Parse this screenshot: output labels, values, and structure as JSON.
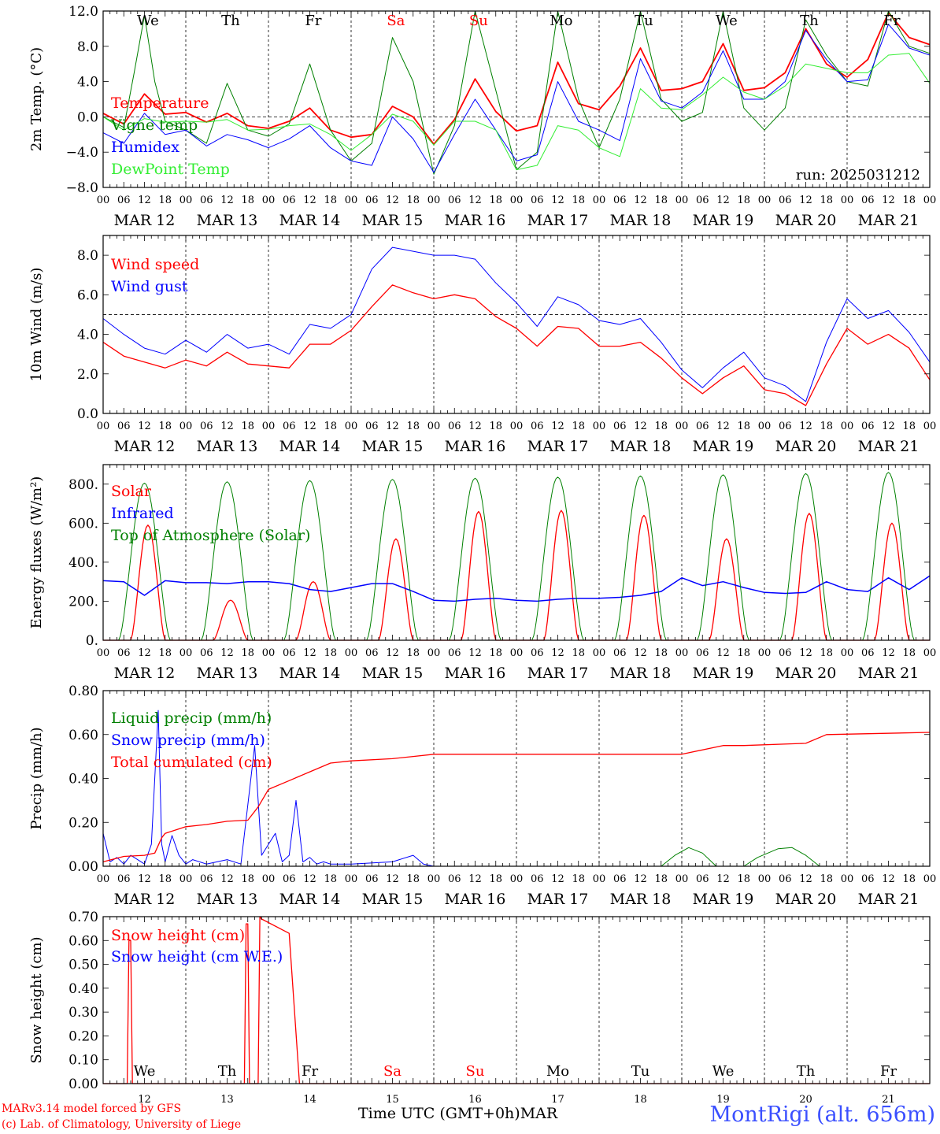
{
  "colors": {
    "red": "#ff0000",
    "blue": "#0000ff",
    "green": "#008000",
    "lightgreen": "#33ee33",
    "weekend": "#ff0000",
    "weekday": "#000000",
    "station": "#3a4fff"
  },
  "x_axis": {
    "hour_labels": [
      "00",
      "06",
      "12",
      "18"
    ],
    "final_hour_label": "00",
    "dates": [
      "MAR 12",
      "MAR 13",
      "MAR 14",
      "MAR 15",
      "MAR 16",
      "MAR 17",
      "MAR 18",
      "MAR 19",
      "MAR 20",
      "MAR 21"
    ],
    "day_numbers": [
      "12",
      "13",
      "14",
      "15",
      "16",
      "17",
      "18",
      "19",
      "20",
      "21"
    ],
    "weekdays": [
      "We",
      "Th",
      "Fr",
      "Sa",
      "Su",
      "Mo",
      "Tu",
      "We",
      "Th",
      "Fr"
    ],
    "weekend_flags": [
      false,
      false,
      false,
      true,
      true,
      false,
      false,
      false,
      false,
      false
    ]
  },
  "footer": {
    "model_line": "MARv3.14 model forced by GFS",
    "copyright_line": "(c) Lab. of Climatology, University of Liege",
    "xlabel": "Time UTC (GMT+0h)MAR",
    "station": "MontRigi (alt. 656m)"
  },
  "chart_data": [
    {
      "type": "line",
      "ylabel": "2m Temp. (°C)",
      "ylim": [
        -8,
        12
      ],
      "yticks": [
        -8,
        -4,
        0,
        4,
        8,
        12
      ],
      "ytick_labels": [
        "−8.0",
        "−4.0",
        "0.0",
        "4.0",
        "8.0",
        "12.0"
      ],
      "ref_line": 0,
      "run_label": "run: 2025031212",
      "x_unit": "hours since 2025-03-12 00 UTC",
      "series": [
        {
          "name": "Temperature",
          "color": "#ff0000",
          "width": 1.8,
          "x": [
            0,
            6,
            12,
            18,
            24,
            30,
            36,
            42,
            48,
            54,
            60,
            66,
            72,
            78,
            84,
            90,
            96,
            102,
            108,
            114,
            120,
            126,
            132,
            138,
            144,
            150,
            156,
            162,
            168,
            174,
            180,
            186,
            192,
            198,
            204,
            210,
            216,
            222,
            228,
            234,
            240
          ],
          "y": [
            0.4,
            -0.8,
            2.6,
            0.3,
            0.5,
            -0.6,
            0.4,
            -1.0,
            -1.3,
            -0.5,
            1.0,
            -1.5,
            -2.3,
            -2.0,
            1.2,
            0.0,
            -3.1,
            -0.3,
            4.3,
            0.6,
            -1.6,
            -1.0,
            6.2,
            1.5,
            0.8,
            3.5,
            7.8,
            3.0,
            3.2,
            4.0,
            8.3,
            3.0,
            3.3,
            5.0,
            10.0,
            6.0,
            4.5,
            6.5,
            11.8,
            9.0,
            8.2
          ]
        },
        {
          "name": "Vigne temp",
          "color": "#008000",
          "width": 1.0,
          "x": [
            0,
            6,
            9,
            12,
            15,
            18,
            24,
            30,
            36,
            42,
            48,
            54,
            60,
            66,
            72,
            78,
            84,
            90,
            96,
            102,
            108,
            114,
            120,
            126,
            132,
            138,
            144,
            150,
            156,
            162,
            168,
            174,
            180,
            186,
            192,
            198,
            204,
            210,
            216,
            222,
            228,
            234,
            240
          ],
          "y": [
            0.0,
            -1.2,
            5.0,
            11.5,
            4.0,
            -0.5,
            -1.5,
            -3.0,
            3.8,
            -1.5,
            -2.2,
            -0.8,
            6.0,
            -1.5,
            -5.0,
            -3.0,
            9.0,
            4.0,
            -6.5,
            -1.0,
            12.0,
            3.0,
            -6.0,
            -4.0,
            12.0,
            2.0,
            -3.5,
            2.0,
            12.0,
            2.0,
            -0.5,
            0.5,
            12.0,
            1.0,
            -1.5,
            1.0,
            11.0,
            7.0,
            4.0,
            3.5,
            12.0,
            8.0,
            7.2
          ]
        },
        {
          "name": "Humidex",
          "color": "#0000ff",
          "width": 1.0,
          "x": [
            0,
            6,
            12,
            18,
            24,
            30,
            36,
            42,
            48,
            54,
            60,
            66,
            72,
            78,
            84,
            90,
            96,
            102,
            108,
            114,
            120,
            126,
            132,
            138,
            144,
            150,
            156,
            162,
            168,
            174,
            180,
            186,
            192,
            198,
            204,
            210,
            216,
            222,
            228,
            234,
            240
          ],
          "y": [
            -1.8,
            -3.0,
            0.4,
            -2.0,
            -1.5,
            -3.3,
            -2.0,
            -2.6,
            -3.5,
            -2.5,
            -1.0,
            -3.5,
            -5.0,
            -5.5,
            0.0,
            -2.5,
            -6.3,
            -2.0,
            2.0,
            -1.5,
            -5.0,
            -4.3,
            4.0,
            -0.5,
            -1.5,
            -2.7,
            6.6,
            1.8,
            1.0,
            2.8,
            7.5,
            2.0,
            2.0,
            4.0,
            9.8,
            6.5,
            4.0,
            4.2,
            10.5,
            7.8,
            7.0
          ]
        },
        {
          "name": "DewPoint Temp",
          "color": "#33ee33",
          "width": 1.0,
          "x": [
            0,
            6,
            12,
            18,
            24,
            30,
            36,
            42,
            48,
            54,
            60,
            66,
            72,
            78,
            84,
            90,
            96,
            102,
            108,
            114,
            120,
            126,
            132,
            138,
            144,
            150,
            156,
            162,
            168,
            174,
            180,
            186,
            192,
            198,
            204,
            210,
            216,
            222,
            228,
            234,
            240
          ],
          "y": [
            0.0,
            -1.5,
            -0.2,
            -0.6,
            -0.5,
            -0.6,
            -0.3,
            -1.5,
            -1.4,
            -1.0,
            -0.8,
            -2.0,
            -3.8,
            -2.0,
            0.3,
            -0.5,
            -3.2,
            -0.5,
            -0.5,
            -1.5,
            -6.0,
            -5.5,
            -1.0,
            -1.5,
            -3.5,
            -4.5,
            3.2,
            1.0,
            0.8,
            2.5,
            4.5,
            2.8,
            2.0,
            3.5,
            6.0,
            5.5,
            5.0,
            5.0,
            7.0,
            7.2,
            3.8
          ]
        }
      ]
    },
    {
      "type": "line",
      "ylabel": "10m Wind (m/s)",
      "ylim": [
        0,
        9
      ],
      "yticks": [
        0,
        2,
        4,
        6,
        8
      ],
      "ytick_labels": [
        "0.0",
        "2.0",
        "4.0",
        "6.0",
        "8.0"
      ],
      "ref_line": 5,
      "x_unit": "hours since 2025-03-12 00 UTC",
      "series": [
        {
          "name": "Wind speed",
          "color": "#ff0000",
          "width": 1.3,
          "x": [
            0,
            6,
            12,
            18,
            24,
            30,
            36,
            42,
            48,
            54,
            60,
            66,
            72,
            78,
            84,
            90,
            96,
            102,
            108,
            114,
            120,
            126,
            132,
            138,
            144,
            150,
            156,
            162,
            168,
            174,
            180,
            186,
            192,
            198,
            204,
            210,
            216,
            222,
            228,
            234,
            240
          ],
          "y": [
            3.6,
            2.9,
            2.6,
            2.3,
            2.7,
            2.4,
            3.1,
            2.5,
            2.4,
            2.3,
            3.5,
            3.5,
            4.2,
            5.4,
            6.5,
            6.1,
            5.8,
            6.0,
            5.8,
            4.9,
            4.3,
            3.4,
            4.4,
            4.3,
            3.4,
            3.4,
            3.6,
            2.8,
            1.8,
            1.0,
            1.8,
            2.4,
            1.2,
            1.0,
            0.4,
            2.5,
            4.3,
            3.5,
            4.0,
            3.3,
            1.7
          ]
        },
        {
          "name": "Wind gust",
          "color": "#0000ff",
          "width": 1.0,
          "x": [
            0,
            6,
            12,
            18,
            24,
            30,
            36,
            42,
            48,
            54,
            60,
            66,
            72,
            78,
            84,
            90,
            96,
            102,
            108,
            114,
            120,
            126,
            132,
            138,
            144,
            150,
            156,
            162,
            168,
            174,
            180,
            186,
            192,
            198,
            204,
            210,
            216,
            222,
            228,
            234,
            240
          ],
          "y": [
            4.8,
            4.0,
            3.3,
            3.0,
            3.7,
            3.1,
            4.0,
            3.3,
            3.5,
            3.0,
            4.5,
            4.3,
            5.0,
            7.3,
            8.4,
            8.2,
            8.0,
            8.0,
            7.8,
            6.6,
            5.6,
            4.4,
            5.9,
            5.5,
            4.7,
            4.5,
            4.8,
            3.6,
            2.2,
            1.3,
            2.3,
            3.1,
            1.8,
            1.4,
            0.6,
            3.6,
            5.8,
            4.8,
            5.2,
            4.1,
            2.6
          ]
        }
      ]
    },
    {
      "type": "line",
      "ylabel": "Energy fluxes (W/m²)",
      "ylim": [
        0,
        900
      ],
      "yticks": [
        0,
        200,
        400,
        600,
        800
      ],
      "ytick_labels": [
        "0.",
        "200.",
        "400.",
        "600.",
        "800."
      ],
      "x_unit": "hours since 2025-03-12 00 UTC",
      "series": [
        {
          "name": "Solar",
          "color": "#ff0000",
          "width": 1.3,
          "daily_peak_hour": 13,
          "daily_peaks": [
            590,
            205,
            300,
            520,
            660,
            665,
            640,
            520,
            650,
            600
          ]
        },
        {
          "name": "Infrared",
          "color": "#0000ff",
          "width": 1.5,
          "x": [
            0,
            6,
            12,
            18,
            24,
            30,
            36,
            42,
            48,
            54,
            60,
            66,
            72,
            78,
            84,
            90,
            96,
            102,
            108,
            114,
            120,
            126,
            132,
            138,
            144,
            150,
            156,
            162,
            168,
            174,
            180,
            186,
            192,
            198,
            204,
            210,
            216,
            222,
            228,
            234,
            240
          ],
          "y": [
            305,
            300,
            230,
            305,
            295,
            295,
            290,
            300,
            300,
            290,
            260,
            250,
            270,
            290,
            290,
            250,
            205,
            200,
            210,
            215,
            205,
            200,
            210,
            215,
            215,
            220,
            230,
            250,
            320,
            280,
            300,
            270,
            245,
            240,
            245,
            300,
            260,
            250,
            320,
            260,
            330
          ]
        },
        {
          "name": "Top of Atmosphere (Solar)",
          "color": "#008000",
          "width": 1.0,
          "daily_peak_hour": 12,
          "daily_peaks": [
            805,
            812,
            818,
            824,
            830,
            836,
            842,
            848,
            854,
            860
          ]
        }
      ]
    },
    {
      "type": "line",
      "ylabel": "Precip (mm/h)",
      "ylim": [
        0,
        0.8
      ],
      "yticks": [
        0,
        0.2,
        0.4,
        0.6,
        0.8
      ],
      "ytick_labels": [
        "0.00",
        "0.20",
        "0.40",
        "0.60",
        "0.80"
      ],
      "x_unit": "hours since 2025-03-12 00 UTC",
      "series": [
        {
          "name": "Liquid precip (mm/h)",
          "color": "#008000",
          "width": 1.0,
          "x": [
            0,
            162,
            166,
            170,
            174,
            178,
            182,
            186,
            190,
            196,
            200,
            204,
            208,
            212,
            216,
            240
          ],
          "y": [
            0,
            0,
            0.05,
            0.085,
            0.06,
            0,
            0,
            0,
            0.04,
            0.08,
            0.085,
            0.05,
            0,
            0,
            0,
            0
          ]
        },
        {
          "name": "Snow precip (mm/h)",
          "color": "#0000ff",
          "width": 1.0,
          "x": [
            0,
            2,
            4,
            6,
            8,
            10,
            12,
            14,
            16,
            17,
            18,
            20,
            22,
            24,
            26,
            30,
            36,
            40,
            42,
            44,
            46,
            48,
            50,
            52,
            54,
            56,
            58,
            60,
            62,
            64,
            66,
            72,
            84,
            90,
            93,
            96,
            120,
            240
          ],
          "y": [
            0.15,
            0.02,
            0.04,
            0.01,
            0.05,
            0.03,
            0.01,
            0.1,
            0.71,
            0.1,
            0.02,
            0.14,
            0.05,
            0.01,
            0.03,
            0.01,
            0.03,
            0.01,
            0.28,
            0.55,
            0.05,
            0.1,
            0.15,
            0.02,
            0.05,
            0.3,
            0.02,
            0.04,
            0.01,
            0.02,
            0.01,
            0.01,
            0.02,
            0.05,
            0.01,
            0,
            0,
            0
          ]
        },
        {
          "name": "Total cumulated (cm)",
          "color": "#ff0000",
          "width": 1.3,
          "x": [
            0,
            6,
            12,
            15,
            17,
            18,
            24,
            30,
            36,
            42,
            45,
            48,
            54,
            60,
            66,
            72,
            84,
            90,
            96,
            120,
            168,
            180,
            186,
            204,
            210,
            240
          ],
          "y": [
            0.02,
            0.045,
            0.05,
            0.06,
            0.13,
            0.15,
            0.18,
            0.19,
            0.205,
            0.21,
            0.27,
            0.35,
            0.39,
            0.43,
            0.47,
            0.48,
            0.49,
            0.5,
            0.51,
            0.51,
            0.51,
            0.55,
            0.55,
            0.56,
            0.6,
            0.61
          ]
        }
      ]
    },
    {
      "type": "line",
      "ylabel": "Snow height (cm)",
      "ylim": [
        0,
        0.7
      ],
      "yticks": [
        0,
        0.1,
        0.2,
        0.3,
        0.4,
        0.5,
        0.6,
        0.7
      ],
      "ytick_labels": [
        "0.00",
        "0.10",
        "0.20",
        "0.30",
        "0.40",
        "0.50",
        "0.60",
        "0.70"
      ],
      "x_unit": "hours since 2025-03-12 00 UTC",
      "series": [
        {
          "name": "Snow height (cm)",
          "color": "#ff0000",
          "width": 1.3,
          "x": [
            0,
            7,
            7.5,
            8,
            8.5,
            41,
            41.5,
            42,
            42.5,
            45,
            45.5,
            46,
            54,
            57,
            240
          ],
          "y": [
            0,
            0,
            0.6,
            0.6,
            0,
            0,
            0.67,
            0.67,
            0,
            0,
            0.7,
            0.69,
            0.63,
            0,
            0
          ]
        },
        {
          "name": "Snow height (cm W.E.)",
          "color": "#0000ff",
          "width": 1.0,
          "x": [
            0,
            240
          ],
          "y": [
            0,
            0
          ]
        }
      ]
    }
  ]
}
